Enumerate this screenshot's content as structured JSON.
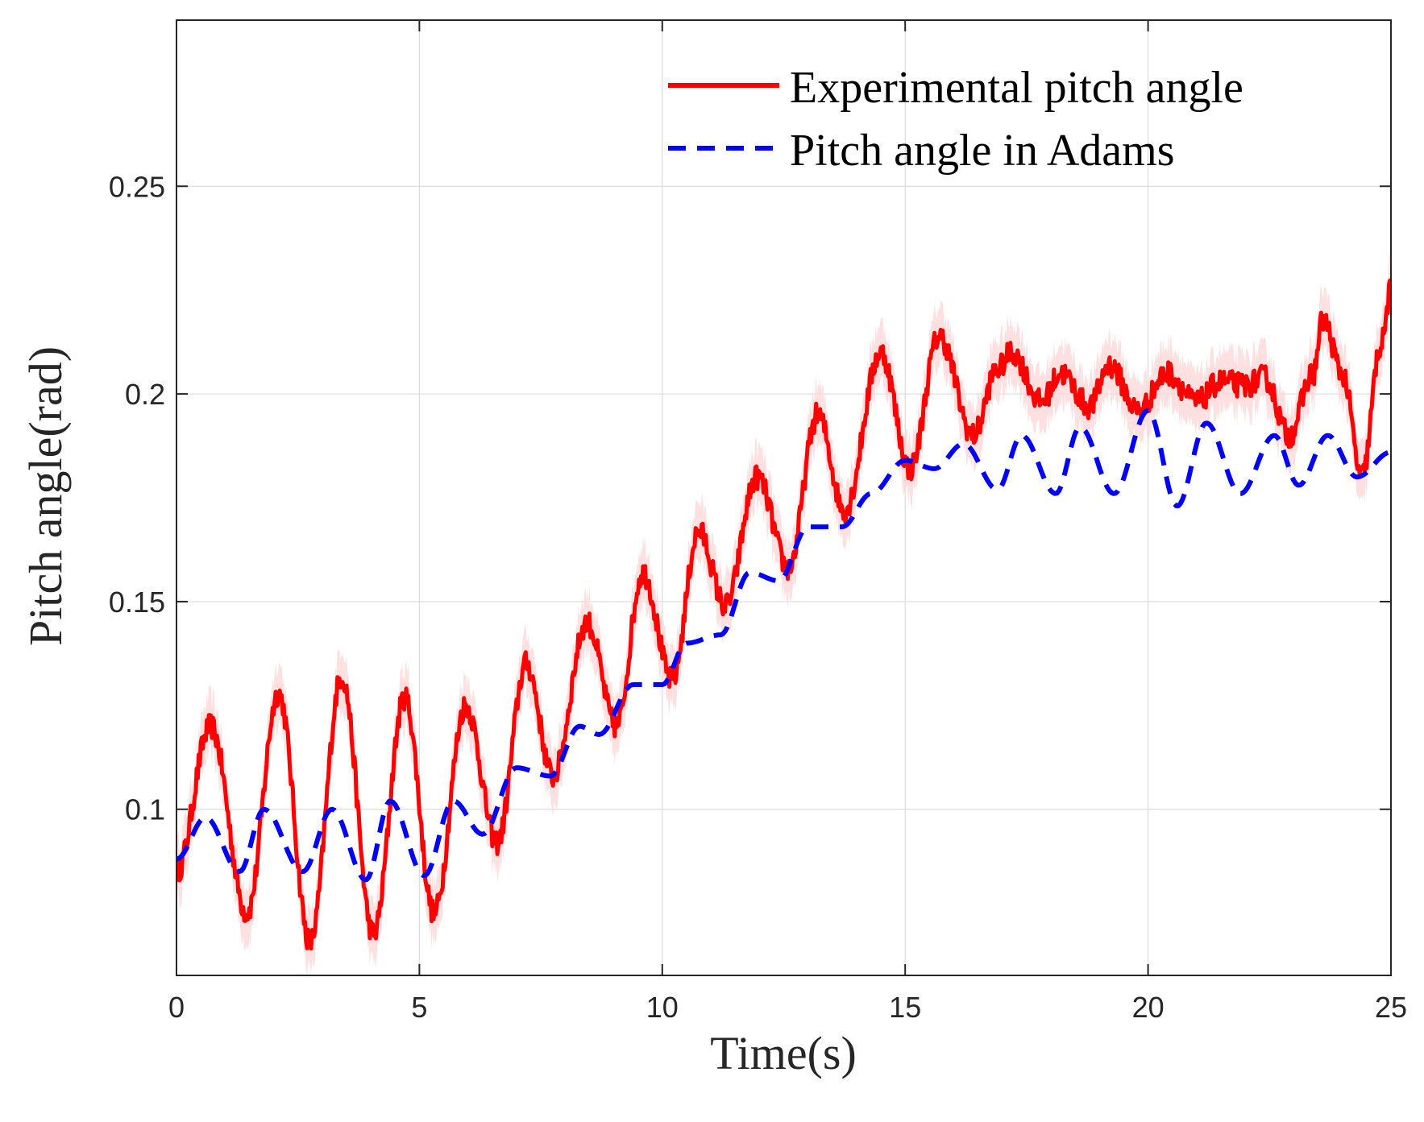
{
  "chart_data": {
    "type": "line",
    "title": "",
    "xlabel": "Time(s)",
    "ylabel": "Pitch angle(rad)",
    "xlim": [
      0,
      25
    ],
    "ylim": [
      0.06,
      0.29
    ],
    "xticks": [
      0,
      5,
      10,
      15,
      20,
      25
    ],
    "xtick_labels": [
      "0",
      "5",
      "10",
      "15",
      "20",
      "25"
    ],
    "yticks": [
      0.1,
      0.15,
      0.2,
      0.25
    ],
    "ytick_labels": [
      "0.1",
      "0.15",
      "0.2",
      "0.25"
    ],
    "grid": true,
    "legend_position": "top-right",
    "series": [
      {
        "name": "Experimental pitch angle",
        "color": "#ff0000",
        "band_color": "#ffd6d6",
        "style": "solid",
        "band_halfwidth": 0.007,
        "x": [
          0,
          0.7,
          1.45,
          2.1,
          2.75,
          3.4,
          4.05,
          4.7,
          5.3,
          5.95,
          6.6,
          7.2,
          7.75,
          8.45,
          9.05,
          9.6,
          10.2,
          10.75,
          11.3,
          11.95,
          12.6,
          13.2,
          13.75,
          14.5,
          15.1,
          15.7,
          16.4,
          16.9,
          17.2,
          17.8,
          18.2,
          18.8,
          19.2,
          19.8,
          20.4,
          21.0,
          21.5,
          22.0,
          22.4,
          22.9,
          23.4,
          23.6,
          24.0,
          24.4,
          24.8,
          25.0
        ],
        "y": [
          0.085,
          0.12,
          0.075,
          0.128,
          0.068,
          0.132,
          0.07,
          0.127,
          0.075,
          0.125,
          0.092,
          0.135,
          0.108,
          0.145,
          0.12,
          0.157,
          0.131,
          0.167,
          0.149,
          0.18,
          0.158,
          0.195,
          0.172,
          0.21,
          0.182,
          0.214,
          0.19,
          0.206,
          0.21,
          0.198,
          0.205,
          0.197,
          0.207,
          0.196,
          0.205,
          0.198,
          0.203,
          0.202,
          0.204,
          0.19,
          0.205,
          0.218,
          0.205,
          0.18,
          0.212,
          0.225
        ]
      },
      {
        "name": "Pitch angle in Adams",
        "color": "#0000ff",
        "style": "dashed",
        "x": [
          0,
          0.6,
          1.3,
          1.8,
          2.6,
          3.2,
          3.9,
          4.4,
          5.1,
          5.7,
          6.3,
          7.0,
          7.7,
          8.3,
          8.7,
          9.4,
          10.0,
          10.5,
          11.2,
          11.8,
          12.4,
          13.0,
          13.7,
          14.3,
          15.0,
          15.6,
          16.2,
          16.9,
          17.4,
          18.1,
          18.6,
          19.3,
          20.0,
          20.6,
          21.2,
          21.9,
          22.6,
          23.1,
          23.7,
          24.3,
          25.0
        ],
        "y": [
          0.088,
          0.098,
          0.085,
          0.1,
          0.085,
          0.1,
          0.083,
          0.102,
          0.084,
          0.102,
          0.094,
          0.11,
          0.108,
          0.12,
          0.118,
          0.13,
          0.13,
          0.14,
          0.142,
          0.157,
          0.155,
          0.168,
          0.168,
          0.176,
          0.184,
          0.182,
          0.188,
          0.177,
          0.19,
          0.176,
          0.192,
          0.176,
          0.196,
          0.173,
          0.193,
          0.176,
          0.19,
          0.178,
          0.19,
          0.18,
          0.186
        ]
      }
    ]
  }
}
